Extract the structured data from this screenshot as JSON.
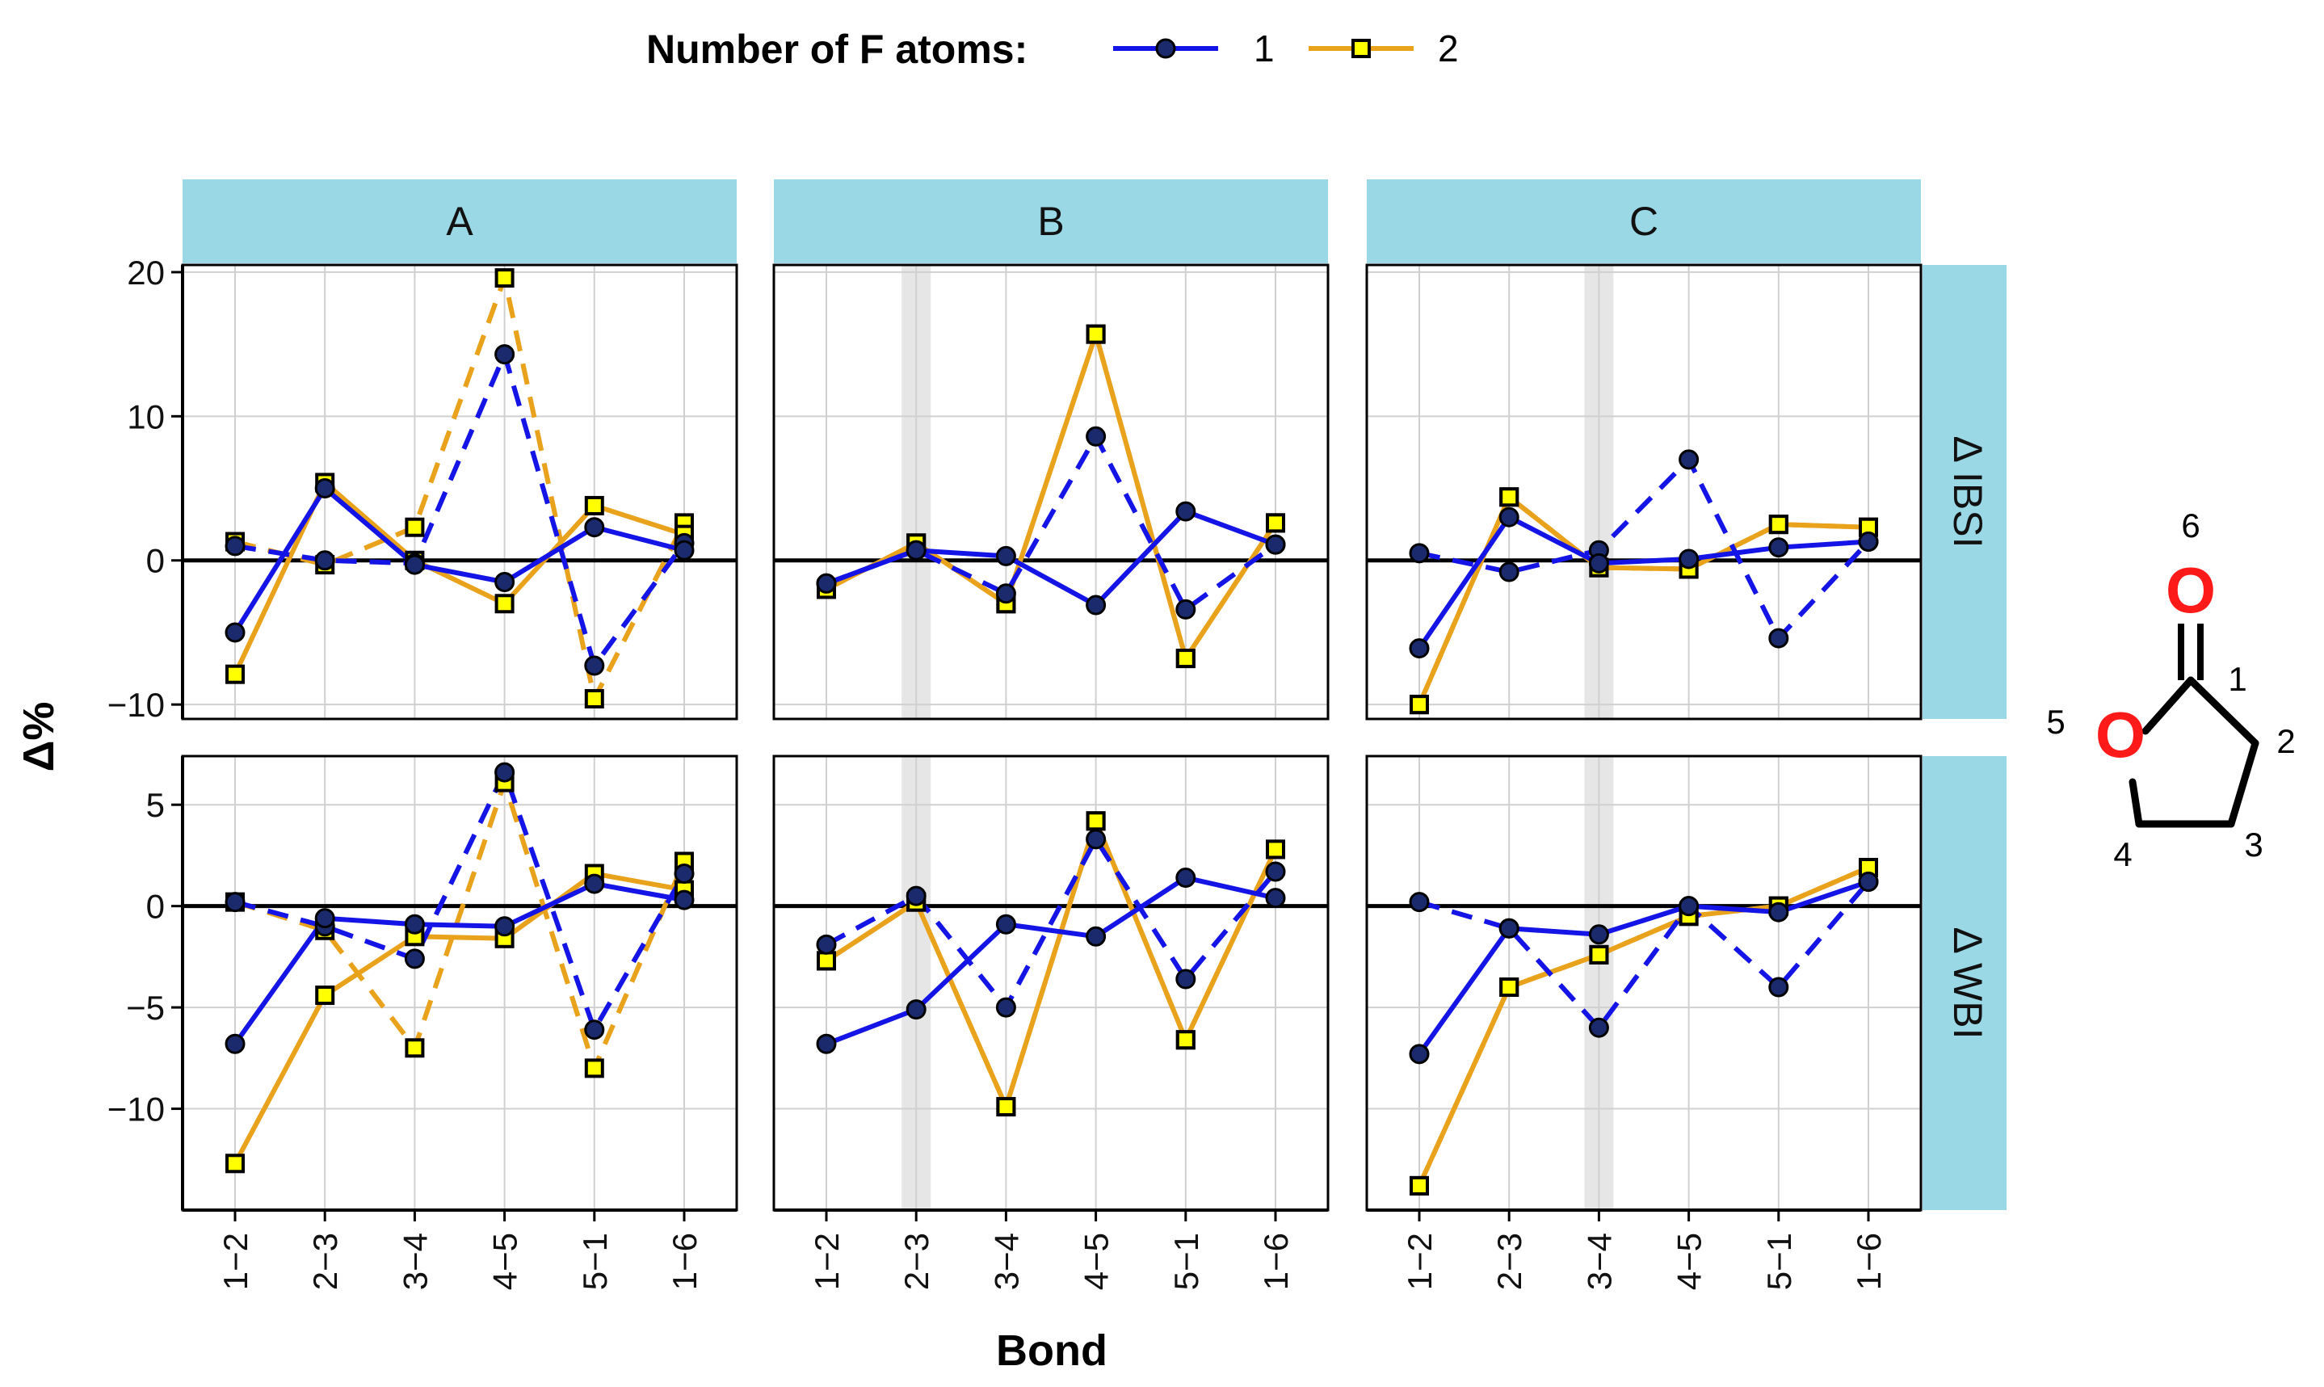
{
  "chart_data": {
    "type": "line",
    "legend": {
      "title": "Number of F atoms:",
      "position": "top",
      "entries": [
        {
          "label": "1",
          "color": "#1414e6",
          "marker": "circle"
        },
        {
          "label": "2",
          "color": "#e9a21b",
          "marker": "square"
        }
      ]
    },
    "xlabel": "Bond",
    "ylabel": "Δ%",
    "categories": [
      "1−2",
      "2−3",
      "3−4",
      "4−5",
      "5−1",
      "1−6"
    ],
    "columns": [
      "A",
      "B",
      "C"
    ],
    "rows": [
      {
        "label": "Δ IBSI",
        "ylim": [
          -11,
          20.5
        ],
        "yticks": [
          20,
          10,
          0,
          -10
        ],
        "yticklabels": [
          "20",
          "10",
          "0",
          "−10"
        ]
      },
      {
        "label": "Δ WBI",
        "ylim": [
          -15,
          7.4
        ],
        "yticks": [
          5,
          0,
          -5,
          -10
        ],
        "yticklabels": [
          "5",
          "0",
          "−5",
          "−10"
        ]
      }
    ],
    "highlight_band": {
      "A": null,
      "B": "2−3",
      "C": "3−4"
    },
    "line_styles": {
      "solid": "solid",
      "dashed": "dashed"
    },
    "panels": [
      {
        "column": "A",
        "row": "Δ IBSI",
        "series": [
          {
            "fatoms": "1",
            "style": "solid",
            "values": [
              -5.0,
              5.0,
              -0.3,
              -1.5,
              2.3,
              0.7
            ]
          },
          {
            "fatoms": "1",
            "style": "dashed",
            "values": [
              1.0,
              0.0,
              -0.2,
              14.3,
              -7.3,
              1.2
            ]
          },
          {
            "fatoms": "2",
            "style": "solid",
            "values": [
              -7.9,
              5.4,
              0.0,
              -3.0,
              3.8,
              1.8
            ]
          },
          {
            "fatoms": "2",
            "style": "dashed",
            "values": [
              1.3,
              -0.3,
              2.3,
              19.6,
              -9.6,
              2.6
            ]
          }
        ]
      },
      {
        "column": "B",
        "row": "Δ IBSI",
        "series": [
          {
            "fatoms": "1",
            "style": "solid",
            "values": [
              -1.6,
              0.7,
              0.3,
              -3.1,
              3.4,
              1.1
            ]
          },
          {
            "fatoms": "1",
            "style": "dashed",
            "values": [
              -1.6,
              0.7,
              -2.3,
              8.6,
              -3.4,
              1.1
            ]
          },
          {
            "fatoms": "2",
            "style": "solid",
            "values": [
              -2.0,
              1.2,
              -3.0,
              15.7,
              -6.8,
              2.6
            ]
          },
          {
            "fatoms": "2",
            "style": "dashed",
            "values": [
              -2.0,
              1.2,
              -3.0,
              15.7,
              -6.8,
              2.6
            ]
          }
        ]
      },
      {
        "column": "C",
        "row": "Δ IBSI",
        "series": [
          {
            "fatoms": "1",
            "style": "solid",
            "values": [
              -6.1,
              3.0,
              -0.2,
              0.1,
              0.9,
              1.3
            ]
          },
          {
            "fatoms": "1",
            "style": "dashed",
            "values": [
              0.5,
              -0.8,
              0.7,
              7.0,
              -5.4,
              1.3
            ]
          },
          {
            "fatoms": "2",
            "style": "solid",
            "values": [
              -10.0,
              4.4,
              -0.5,
              -0.6,
              2.5,
              2.3
            ]
          },
          {
            "fatoms": "2",
            "style": "dashed",
            "values": [
              -10.0,
              4.4,
              -0.5,
              -0.6,
              2.5,
              2.3
            ]
          }
        ]
      },
      {
        "column": "A",
        "row": "Δ WBI",
        "series": [
          {
            "fatoms": "1",
            "style": "solid",
            "values": [
              -6.8,
              -0.6,
              -0.9,
              -1.0,
              1.1,
              0.3
            ]
          },
          {
            "fatoms": "1",
            "style": "dashed",
            "values": [
              0.2,
              -1.0,
              -2.6,
              6.6,
              -6.1,
              1.6
            ]
          },
          {
            "fatoms": "2",
            "style": "solid",
            "values": [
              -12.7,
              -4.4,
              -1.5,
              -1.6,
              1.6,
              0.8
            ]
          },
          {
            "fatoms": "2",
            "style": "dashed",
            "values": [
              0.2,
              -1.2,
              -7.0,
              6.1,
              -8.0,
              2.2
            ]
          }
        ]
      },
      {
        "column": "B",
        "row": "Δ WBI",
        "series": [
          {
            "fatoms": "1",
            "style": "solid",
            "values": [
              -6.8,
              -5.1,
              -0.9,
              -1.5,
              1.4,
              0.4
            ]
          },
          {
            "fatoms": "1",
            "style": "dashed",
            "values": [
              -1.9,
              0.5,
              -5.0,
              3.3,
              -3.6,
              1.7
            ]
          },
          {
            "fatoms": "2",
            "style": "solid",
            "values": [
              -2.7,
              0.2,
              -9.9,
              4.2,
              -6.6,
              2.8
            ]
          },
          {
            "fatoms": "2",
            "style": "dashed",
            "values": [
              -2.7,
              0.2,
              -9.9,
              4.2,
              -6.6,
              2.8
            ]
          }
        ]
      },
      {
        "column": "C",
        "row": "Δ WBI",
        "series": [
          {
            "fatoms": "1",
            "style": "solid",
            "values": [
              -7.3,
              -1.1,
              -1.4,
              0.0,
              -0.3,
              1.2
            ]
          },
          {
            "fatoms": "1",
            "style": "dashed",
            "values": [
              0.2,
              -1.1,
              -6.0,
              0.0,
              -4.0,
              1.2
            ]
          },
          {
            "fatoms": "2",
            "style": "solid",
            "values": [
              -13.8,
              -4.0,
              -2.4,
              -0.5,
              0.0,
              1.9
            ]
          },
          {
            "fatoms": "2",
            "style": "dashed",
            "values": [
              -13.8,
              -4.0,
              -2.4,
              -0.5,
              0.0,
              1.9
            ]
          }
        ]
      }
    ],
    "molecule": {
      "atom_labels": [
        "6",
        "1",
        "2",
        "3",
        "4",
        "5"
      ],
      "oxygen_symbol": "O"
    }
  }
}
